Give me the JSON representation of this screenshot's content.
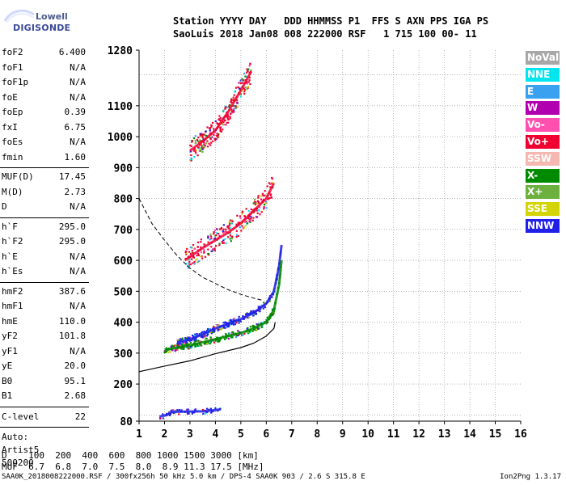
{
  "logo": {
    "top": "Lowell",
    "bottom": "DIGISONDE"
  },
  "header": {
    "row1": "Station YYYY DAY   DDD HHMMSS P1  FFS S AXN PPS IGA PS",
    "row2": "SaoLuis 2018 Jan08 008 222000 RSF   1 715 100 00- 11"
  },
  "params_group1": [
    {
      "name": "foF2",
      "value": "6.400"
    },
    {
      "name": "foF1",
      "value": "N/A"
    },
    {
      "name": "foF1p",
      "value": "N/A"
    },
    {
      "name": "foE",
      "value": "N/A"
    },
    {
      "name": "foEp",
      "value": "0.39"
    },
    {
      "name": "fxI",
      "value": "6.75"
    },
    {
      "name": "foEs",
      "value": "N/A"
    },
    {
      "name": "fmin",
      "value": "1.60"
    }
  ],
  "params_group2": [
    {
      "name": "MUF(D)",
      "value": "17.45"
    },
    {
      "name": "M(D)",
      "value": "2.73"
    },
    {
      "name": "D",
      "value": "N/A"
    }
  ],
  "params_group3": [
    {
      "name": "h`F",
      "value": "295.0"
    },
    {
      "name": "h`F2",
      "value": "295.0"
    },
    {
      "name": "h`E",
      "value": "N/A"
    },
    {
      "name": "h`Es",
      "value": "N/A"
    }
  ],
  "params_group4": [
    {
      "name": "hmF2",
      "value": "387.6"
    },
    {
      "name": "hmF1",
      "value": "N/A"
    },
    {
      "name": "hmE",
      "value": "110.0"
    },
    {
      "name": "yF2",
      "value": "101.8"
    },
    {
      "name": "yF1",
      "value": "N/A"
    },
    {
      "name": "yE",
      "value": "20.0"
    },
    {
      "name": "B0",
      "value": "95.1"
    },
    {
      "name": "B1",
      "value": "2.68"
    }
  ],
  "clevel": {
    "name": "C-level",
    "value": "22"
  },
  "auto": [
    "Auto:",
    "Artist5",
    "500200"
  ],
  "legend": [
    {
      "label": "NoVal",
      "color": "#a8a8a8"
    },
    {
      "label": "NNE",
      "color": "#00e5ee"
    },
    {
      "label": "E",
      "color": "#3aa0f0"
    },
    {
      "label": "W",
      "color": "#b000b0"
    },
    {
      "label": "Vo-",
      "color": "#ff50b0"
    },
    {
      "label": "Vo+",
      "color": "#f00030"
    },
    {
      "label": "SSW",
      "color": "#f4b8b0"
    },
    {
      "label": "X-",
      "color": "#008a00"
    },
    {
      "label": "X+",
      "color": "#6cb040"
    },
    {
      "label": "SSE",
      "color": "#d4d400"
    },
    {
      "label": "NNW",
      "color": "#2020e8"
    }
  ],
  "bottom": {
    "d_row": "D    100  200  400  600  800 1000 1500 3000 [km]",
    "muf_row": "MUF  6.7  6.8  7.0  7.5  8.0  8.9 11.3 17.5 [MHz]"
  },
  "footer": {
    "left": "SAA0K_2018008222000.RSF / 300fx256h 50 kHz 5.0 km / DPS-4 SAA0K 903 / 2.6 S 315.8 E",
    "right": "Ion2Png 1.3.17"
  },
  "chart_data": {
    "type": "scatter",
    "title": "",
    "xlabel": "",
    "ylabel": "",
    "xlim": [
      1,
      16
    ],
    "ylim": [
      80,
      1280
    ],
    "x_ticks": [
      1,
      2,
      3,
      4,
      5,
      6,
      7,
      8,
      9,
      10,
      11,
      12,
      13,
      14,
      15,
      16
    ],
    "y_ticks": [
      80,
      200,
      300,
      400,
      500,
      600,
      700,
      800,
      900,
      1000,
      1100,
      1280
    ],
    "grid": true,
    "traces": [
      {
        "name": "F2 O-trace",
        "color": "#2020e8",
        "points": [
          [
            2.5,
            335
          ],
          [
            3.0,
            345
          ],
          [
            3.5,
            360
          ],
          [
            4.0,
            380
          ],
          [
            4.5,
            395
          ],
          [
            5.0,
            410
          ],
          [
            5.5,
            430
          ],
          [
            6.0,
            460
          ],
          [
            6.3,
            500
          ],
          [
            6.5,
            580
          ],
          [
            6.6,
            650
          ]
        ]
      },
      {
        "name": "F2 X-trace",
        "color": "#008a00",
        "points": [
          [
            2.0,
            310
          ],
          [
            3.0,
            325
          ],
          [
            4.0,
            345
          ],
          [
            5.0,
            365
          ],
          [
            5.5,
            380
          ],
          [
            6.0,
            400
          ],
          [
            6.3,
            440
          ],
          [
            6.5,
            520
          ],
          [
            6.6,
            600
          ]
        ]
      },
      {
        "name": "F2 second hop",
        "color": "#f00030",
        "points": [
          [
            2.8,
            600
          ],
          [
            3.5,
            640
          ],
          [
            4.0,
            665
          ],
          [
            4.5,
            690
          ],
          [
            5.0,
            720
          ],
          [
            5.5,
            760
          ],
          [
            6.0,
            800
          ],
          [
            6.3,
            850
          ]
        ]
      },
      {
        "name": "F2 third hop",
        "color": "#f00030",
        "points": [
          [
            3.0,
            955
          ],
          [
            3.5,
            985
          ],
          [
            4.0,
            1020
          ],
          [
            4.5,
            1080
          ],
          [
            5.0,
            1150
          ],
          [
            5.4,
            1210
          ]
        ]
      },
      {
        "name": "Es-like echoes",
        "color": "#2020e8",
        "points": [
          [
            1.8,
            95
          ],
          [
            2.1,
            100
          ],
          [
            2.3,
            110
          ],
          [
            3.6,
            112
          ],
          [
            4.2,
            118
          ]
        ]
      }
    ],
    "profile_solid": [
      [
        1.0,
        240
      ],
      [
        2.0,
        258
      ],
      [
        3.0,
        275
      ],
      [
        4.0,
        298
      ],
      [
        5.0,
        318
      ],
      [
        5.5,
        332
      ],
      [
        6.0,
        355
      ],
      [
        6.3,
        380
      ],
      [
        6.35,
        400
      ]
    ],
    "profile_dashed": [
      [
        1.0,
        800
      ],
      [
        1.5,
        720
      ],
      [
        2.0,
        665
      ],
      [
        2.5,
        615
      ],
      [
        3.0,
        575
      ],
      [
        3.5,
        545
      ],
      [
        4.0,
        525
      ],
      [
        4.5,
        505
      ],
      [
        5.0,
        490
      ],
      [
        5.5,
        478
      ],
      [
        5.9,
        470
      ]
    ]
  }
}
